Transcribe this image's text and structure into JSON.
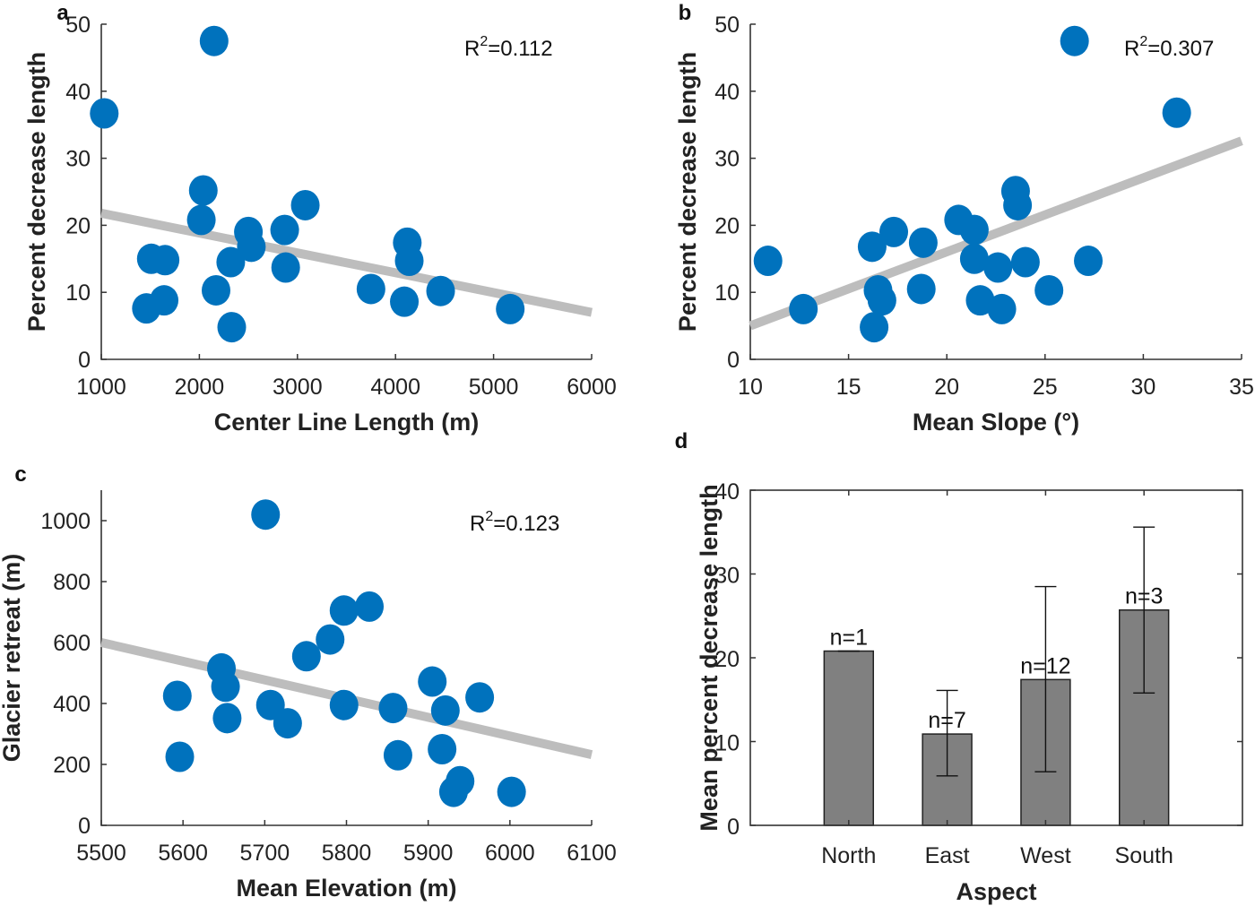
{
  "chart_data": [
    {
      "id": "a",
      "type": "scatter",
      "panel_label": "a",
      "xlabel": "Center Line Length (m)",
      "ylabel": "Percent decrease length",
      "xlim": [
        1000,
        6000
      ],
      "ylim": [
        0,
        50
      ],
      "xticks": [
        1000,
        2000,
        3000,
        4000,
        5000,
        6000
      ],
      "yticks": [
        0,
        10,
        20,
        30,
        40,
        50
      ],
      "grid": false,
      "annotation": {
        "text_base": "R",
        "text_sup": "2",
        "text_rest": "=0.112",
        "position": "top-right"
      },
      "points": [
        [
          1030,
          36.7
        ],
        [
          2150,
          47.5
        ],
        [
          1460,
          7.6
        ],
        [
          1510,
          15.0
        ],
        [
          1650,
          14.8
        ],
        [
          1640,
          8.8
        ],
        [
          2020,
          20.8
        ],
        [
          2040,
          25.2
        ],
        [
          2170,
          10.3
        ],
        [
          2320,
          14.5
        ],
        [
          2330,
          4.8
        ],
        [
          2500,
          19.0
        ],
        [
          2530,
          16.8
        ],
        [
          2870,
          19.3
        ],
        [
          2880,
          13.7
        ],
        [
          3080,
          23.0
        ],
        [
          3750,
          10.5
        ],
        [
          4090,
          8.6
        ],
        [
          4120,
          17.4
        ],
        [
          4140,
          14.7
        ],
        [
          4460,
          10.2
        ],
        [
          5170,
          7.5
        ]
      ],
      "trend": [
        [
          1000,
          21.8
        ],
        [
          6000,
          7.0
        ]
      ]
    },
    {
      "id": "b",
      "type": "scatter",
      "panel_label": "b",
      "xlabel": "Mean Slope (°)",
      "ylabel": "Percent decrease length",
      "xlim": [
        10,
        35
      ],
      "ylim": [
        0,
        50
      ],
      "xticks": [
        10,
        15,
        20,
        25,
        30,
        35
      ],
      "yticks": [
        0,
        10,
        20,
        30,
        40,
        50
      ],
      "grid": false,
      "annotation": {
        "text_base": "R",
        "text_sup": "2",
        "text_rest": "=0.307",
        "position": "top-right"
      },
      "points": [
        [
          10.9,
          14.7
        ],
        [
          12.7,
          7.5
        ],
        [
          16.2,
          16.8
        ],
        [
          16.3,
          4.8
        ],
        [
          16.5,
          10.3
        ],
        [
          16.7,
          8.8
        ],
        [
          17.3,
          19.0
        ],
        [
          18.7,
          10.5
        ],
        [
          18.8,
          17.4
        ],
        [
          20.6,
          20.8
        ],
        [
          21.4,
          19.3
        ],
        [
          21.4,
          15.0
        ],
        [
          21.7,
          8.8
        ],
        [
          22.6,
          13.7
        ],
        [
          22.8,
          7.5
        ],
        [
          23.5,
          25.1
        ],
        [
          23.6,
          23.0
        ],
        [
          24.0,
          14.5
        ],
        [
          25.2,
          10.3
        ],
        [
          26.5,
          47.5
        ],
        [
          27.2,
          14.7
        ],
        [
          31.7,
          36.8
        ]
      ],
      "trend": [
        [
          10,
          5.0
        ],
        [
          35,
          32.6
        ]
      ]
    },
    {
      "id": "c",
      "type": "scatter",
      "panel_label": "c",
      "xlabel": "Mean Elevation (m)",
      "ylabel": "Glacier retreat (m)",
      "xlim": [
        5500,
        6100
      ],
      "ylim": [
        0,
        1100
      ],
      "xticks": [
        5500,
        5600,
        5700,
        5800,
        5900,
        6000,
        6100
      ],
      "yticks": [
        0,
        200,
        400,
        600,
        800,
        1000
      ],
      "grid": false,
      "annotation": {
        "text_base": "R",
        "text_sup": "2",
        "text_rest": "=0.123",
        "position": "top-right"
      },
      "points": [
        [
          5593,
          425
        ],
        [
          5596,
          225
        ],
        [
          5647,
          515
        ],
        [
          5652,
          455
        ],
        [
          5654,
          352
        ],
        [
          5701,
          1020
        ],
        [
          5707,
          395
        ],
        [
          5728,
          335
        ],
        [
          5751,
          555
        ],
        [
          5780,
          610
        ],
        [
          5797,
          705
        ],
        [
          5797,
          395
        ],
        [
          5828,
          718
        ],
        [
          5857,
          385
        ],
        [
          5863,
          230
        ],
        [
          5905,
          472
        ],
        [
          5917,
          250
        ],
        [
          5921,
          377
        ],
        [
          5931,
          110
        ],
        [
          5939,
          145
        ],
        [
          5963,
          420
        ],
        [
          6002,
          110
        ]
      ],
      "trend": [
        [
          5500,
          600
        ],
        [
          6100,
          232
        ]
      ]
    },
    {
      "id": "d",
      "type": "bar",
      "panel_label": "d",
      "xlabel": "Aspect",
      "ylabel": "Mean percent decrease length",
      "ylim": [
        0,
        40
      ],
      "yticks": [
        0,
        10,
        20,
        30,
        40
      ],
      "grid": false,
      "categories": [
        "North",
        "East",
        "West",
        "South"
      ],
      "values": [
        20.8,
        10.9,
        17.4,
        25.7
      ],
      "error_low": [
        20.8,
        5.9,
        6.4,
        15.8
      ],
      "error_high": [
        20.8,
        16.1,
        28.5,
        35.6
      ],
      "n_labels": [
        "n=1",
        "n=7",
        "n=12",
        "n=3"
      ]
    }
  ],
  "colors": {
    "marker": "#0072BD",
    "trend": "#BDBDBD",
    "bar_fill": "#808080",
    "bar_edge": "#222222",
    "axis": "#333333"
  }
}
